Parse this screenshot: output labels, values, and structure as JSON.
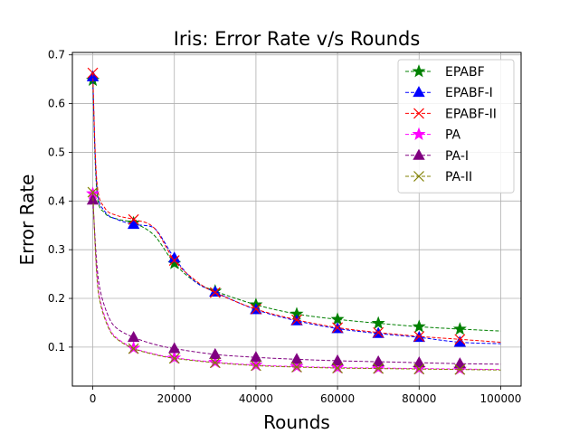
{
  "chart_data": {
    "type": "line",
    "title": "Iris: Error Rate v/s Rounds",
    "xlabel": "Rounds",
    "ylabel": "Error Rate",
    "xlim": [
      -5000,
      105000
    ],
    "ylim": [
      0.02,
      0.705
    ],
    "xticks": [
      0,
      20000,
      40000,
      60000,
      80000,
      100000
    ],
    "xtick_labels": [
      "0",
      "20000",
      "40000",
      "60000",
      "80000",
      "100000"
    ],
    "yticks": [
      0.1,
      0.2,
      0.3,
      0.4,
      0.5,
      0.6,
      0.7
    ],
    "ytick_labels": [
      "0.1",
      "0.2",
      "0.3",
      "0.4",
      "0.5",
      "0.6",
      "0.7"
    ],
    "grid": true,
    "legend_position": "top-right",
    "series": [
      {
        "name": "EPABF",
        "color": "#008000",
        "marker": "star",
        "x": [
          0,
          1000,
          3000,
          6000,
          10000,
          15000,
          20000,
          25000,
          30000,
          40000,
          50000,
          60000,
          70000,
          80000,
          90000,
          100000
        ],
        "y": [
          0.648,
          0.42,
          0.375,
          0.363,
          0.355,
          0.33,
          0.272,
          0.235,
          0.215,
          0.187,
          0.168,
          0.157,
          0.149,
          0.142,
          0.137,
          0.133
        ],
        "markers_x": [
          0,
          10000,
          20000,
          30000,
          40000,
          50000,
          60000,
          70000,
          80000,
          90000
        ],
        "markers_y": [
          0.648,
          0.355,
          0.272,
          0.215,
          0.187,
          0.168,
          0.157,
          0.149,
          0.142,
          0.137
        ]
      },
      {
        "name": "EPABF-I",
        "color": "#0000ff",
        "marker": "triangle",
        "x": [
          0,
          1000,
          3000,
          6000,
          10000,
          15000,
          20000,
          25000,
          30000,
          40000,
          50000,
          60000,
          70000,
          80000,
          90000,
          100000
        ],
        "y": [
          0.655,
          0.43,
          0.378,
          0.362,
          0.352,
          0.345,
          0.283,
          0.235,
          0.213,
          0.177,
          0.154,
          0.138,
          0.128,
          0.12,
          0.11,
          0.107
        ],
        "markers_x": [
          0,
          10000,
          20000,
          30000,
          40000,
          50000,
          60000,
          70000,
          80000,
          90000
        ],
        "markers_y": [
          0.655,
          0.352,
          0.283,
          0.213,
          0.177,
          0.154,
          0.138,
          0.128,
          0.12,
          0.11
        ]
      },
      {
        "name": "EPABF-II",
        "color": "#ff0000",
        "marker": "x",
        "x": [
          0,
          1000,
          3000,
          6000,
          10000,
          15000,
          20000,
          25000,
          30000,
          40000,
          50000,
          60000,
          70000,
          80000,
          90000,
          100000
        ],
        "y": [
          0.663,
          0.44,
          0.385,
          0.37,
          0.362,
          0.345,
          0.278,
          0.238,
          0.212,
          0.178,
          0.156,
          0.14,
          0.13,
          0.122,
          0.116,
          0.11
        ],
        "markers_x": [
          0,
          10000,
          20000,
          30000,
          40000,
          50000,
          60000,
          70000,
          80000,
          90000
        ],
        "markers_y": [
          0.663,
          0.362,
          0.278,
          0.212,
          0.178,
          0.156,
          0.14,
          0.13,
          0.122,
          0.116
        ]
      },
      {
        "name": "PA",
        "color": "#ff00ff",
        "marker": "star",
        "x": [
          0,
          1000,
          2000,
          4000,
          6000,
          10000,
          15000,
          20000,
          30000,
          40000,
          50000,
          60000,
          70000,
          80000,
          90000,
          100000
        ],
        "y": [
          0.415,
          0.25,
          0.19,
          0.14,
          0.118,
          0.098,
          0.086,
          0.078,
          0.069,
          0.063,
          0.06,
          0.058,
          0.057,
          0.056,
          0.055,
          0.054
        ],
        "markers_x": [
          0,
          10000,
          20000,
          30000,
          40000,
          50000,
          60000,
          70000,
          80000,
          90000
        ],
        "markers_y": [
          0.415,
          0.098,
          0.078,
          0.069,
          0.063,
          0.06,
          0.058,
          0.057,
          0.056,
          0.055
        ]
      },
      {
        "name": "PA-I",
        "color": "#800080",
        "marker": "triangle",
        "x": [
          0,
          1000,
          2000,
          4000,
          6000,
          10000,
          15000,
          20000,
          30000,
          40000,
          50000,
          60000,
          70000,
          80000,
          90000,
          100000
        ],
        "y": [
          0.402,
          0.27,
          0.21,
          0.16,
          0.138,
          0.12,
          0.106,
          0.097,
          0.085,
          0.079,
          0.075,
          0.072,
          0.07,
          0.068,
          0.066,
          0.065
        ],
        "markers_x": [
          0,
          10000,
          20000,
          30000,
          40000,
          50000,
          60000,
          70000,
          80000,
          90000
        ],
        "markers_y": [
          0.402,
          0.12,
          0.097,
          0.085,
          0.079,
          0.075,
          0.072,
          0.07,
          0.068,
          0.066
        ]
      },
      {
        "name": "PA-II",
        "color": "#808000",
        "marker": "x",
        "x": [
          0,
          1000,
          2000,
          4000,
          6000,
          10000,
          15000,
          20000,
          30000,
          40000,
          50000,
          60000,
          70000,
          80000,
          90000,
          100000
        ],
        "y": [
          0.418,
          0.245,
          0.185,
          0.137,
          0.116,
          0.097,
          0.085,
          0.077,
          0.068,
          0.062,
          0.059,
          0.057,
          0.056,
          0.055,
          0.054,
          0.053
        ],
        "markers_x": [
          0,
          10000,
          20000,
          30000,
          40000,
          50000,
          60000,
          70000,
          80000,
          90000
        ],
        "markers_y": [
          0.418,
          0.097,
          0.077,
          0.068,
          0.062,
          0.059,
          0.057,
          0.056,
          0.055,
          0.054
        ]
      }
    ]
  }
}
